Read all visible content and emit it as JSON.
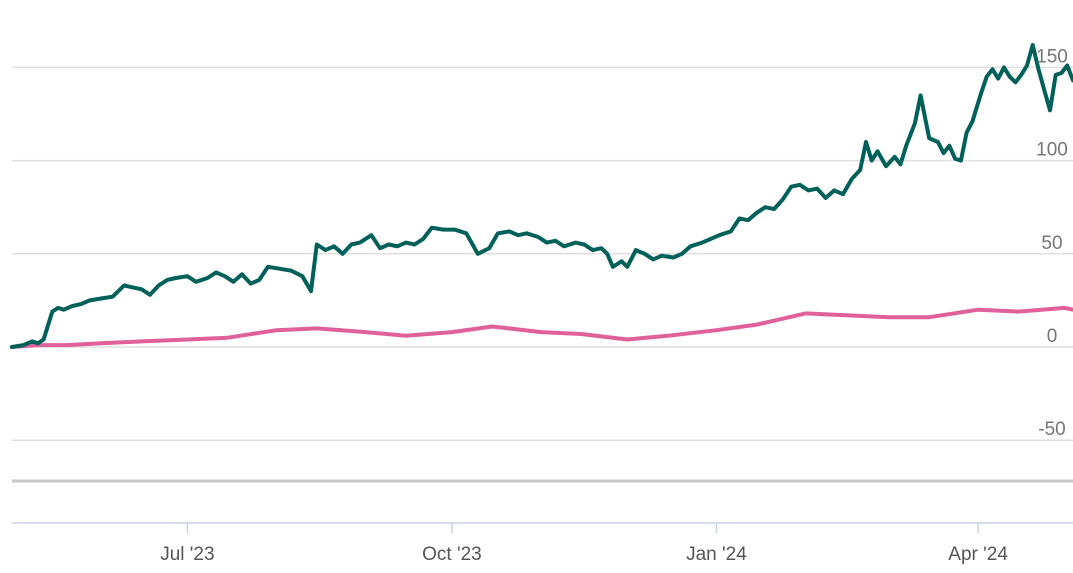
{
  "chart_data": {
    "type": "line",
    "title": "",
    "xlabel": "",
    "ylabel": "",
    "ylim": [
      -70,
      160
    ],
    "y_ticks": [
      150,
      100,
      50,
      0,
      -50
    ],
    "y_tick_labels": [
      "150",
      "100",
      "50",
      "0",
      "-50"
    ],
    "x_ticks": [
      {
        "label": "Jul '23",
        "date": "2023-07-01"
      },
      {
        "label": "Oct '23",
        "date": "2023-10-01"
      },
      {
        "label": "Jan '24",
        "date": "2024-01-01"
      },
      {
        "label": "Apr '24",
        "date": "2024-04-01"
      }
    ],
    "x_range": [
      "2023-05-01",
      "2024-05-04"
    ],
    "grid": true,
    "legend": "none",
    "colors": {
      "series_1": "#00605a",
      "series_2": "#e0609a",
      "grid": "#e0e0e0",
      "axis": "#c8d4e8",
      "floor": "#c8c8c8"
    },
    "series": [
      {
        "color": "#00605a",
        "points": [
          [
            "2023-05-01",
            0
          ],
          [
            "2023-05-05",
            1
          ],
          [
            "2023-05-08",
            3
          ],
          [
            "2023-05-10",
            2
          ],
          [
            "2023-05-12",
            4
          ],
          [
            "2023-05-15",
            19
          ],
          [
            "2023-05-17",
            21
          ],
          [
            "2023-05-19",
            20
          ],
          [
            "2023-05-22",
            22
          ],
          [
            "2023-05-25",
            23
          ],
          [
            "2023-05-28",
            25
          ],
          [
            "2023-06-01",
            26
          ],
          [
            "2023-06-05",
            27
          ],
          [
            "2023-06-09",
            33
          ],
          [
            "2023-06-12",
            32
          ],
          [
            "2023-06-15",
            31
          ],
          [
            "2023-06-18",
            28
          ],
          [
            "2023-06-21",
            33
          ],
          [
            "2023-06-24",
            36
          ],
          [
            "2023-06-27",
            37
          ],
          [
            "2023-07-01",
            38
          ],
          [
            "2023-07-04",
            35
          ],
          [
            "2023-07-08",
            37
          ],
          [
            "2023-07-11",
            40
          ],
          [
            "2023-07-14",
            38
          ],
          [
            "2023-07-17",
            35
          ],
          [
            "2023-07-20",
            39
          ],
          [
            "2023-07-23",
            34
          ],
          [
            "2023-07-26",
            36
          ],
          [
            "2023-07-29",
            43
          ],
          [
            "2023-08-02",
            42
          ],
          [
            "2023-08-06",
            41
          ],
          [
            "2023-08-10",
            38
          ],
          [
            "2023-08-13",
            30
          ],
          [
            "2023-08-15",
            55
          ],
          [
            "2023-08-18",
            52
          ],
          [
            "2023-08-21",
            54
          ],
          [
            "2023-08-24",
            50
          ],
          [
            "2023-08-27",
            55
          ],
          [
            "2023-08-30",
            56
          ],
          [
            "2023-09-03",
            60
          ],
          [
            "2023-09-06",
            53
          ],
          [
            "2023-09-09",
            55
          ],
          [
            "2023-09-12",
            54
          ],
          [
            "2023-09-15",
            56
          ],
          [
            "2023-09-18",
            55
          ],
          [
            "2023-09-21",
            58
          ],
          [
            "2023-09-24",
            64
          ],
          [
            "2023-09-28",
            63
          ],
          [
            "2023-10-02",
            63
          ],
          [
            "2023-10-06",
            61
          ],
          [
            "2023-10-10",
            50
          ],
          [
            "2023-10-14",
            53
          ],
          [
            "2023-10-17",
            61
          ],
          [
            "2023-10-21",
            62
          ],
          [
            "2023-10-24",
            60
          ],
          [
            "2023-10-27",
            61
          ],
          [
            "2023-10-31",
            59
          ],
          [
            "2023-11-03",
            56
          ],
          [
            "2023-11-06",
            57
          ],
          [
            "2023-11-09",
            54
          ],
          [
            "2023-11-13",
            56
          ],
          [
            "2023-11-16",
            55
          ],
          [
            "2023-11-19",
            52
          ],
          [
            "2023-11-22",
            53
          ],
          [
            "2023-11-24",
            50
          ],
          [
            "2023-11-26",
            43
          ],
          [
            "2023-11-29",
            46
          ],
          [
            "2023-12-01",
            43
          ],
          [
            "2023-12-04",
            52
          ],
          [
            "2023-12-07",
            50
          ],
          [
            "2023-12-10",
            47
          ],
          [
            "2023-12-13",
            49
          ],
          [
            "2023-12-17",
            48
          ],
          [
            "2023-12-20",
            50
          ],
          [
            "2023-12-23",
            54
          ],
          [
            "2023-12-27",
            56
          ],
          [
            "2023-12-30",
            58
          ],
          [
            "2024-01-02",
            60
          ],
          [
            "2024-01-06",
            62
          ],
          [
            "2024-01-09",
            69
          ],
          [
            "2024-01-12",
            68
          ],
          [
            "2024-01-15",
            72
          ],
          [
            "2024-01-18",
            75
          ],
          [
            "2024-01-21",
            74
          ],
          [
            "2024-01-24",
            79
          ],
          [
            "2024-01-27",
            86
          ],
          [
            "2024-01-30",
            87
          ],
          [
            "2024-02-02",
            84
          ],
          [
            "2024-02-05",
            85
          ],
          [
            "2024-02-08",
            80
          ],
          [
            "2024-02-11",
            84
          ],
          [
            "2024-02-14",
            82
          ],
          [
            "2024-02-17",
            90
          ],
          [
            "2024-02-20",
            95
          ],
          [
            "2024-02-22",
            110
          ],
          [
            "2024-02-24",
            100
          ],
          [
            "2024-02-26",
            105
          ],
          [
            "2024-02-29",
            97
          ],
          [
            "2024-03-03",
            102
          ],
          [
            "2024-03-05",
            98
          ],
          [
            "2024-03-07",
            108
          ],
          [
            "2024-03-10",
            120
          ],
          [
            "2024-03-12",
            135
          ],
          [
            "2024-03-15",
            112
          ],
          [
            "2024-03-18",
            110
          ],
          [
            "2024-03-20",
            104
          ],
          [
            "2024-03-22",
            108
          ],
          [
            "2024-03-24",
            101
          ],
          [
            "2024-03-26",
            100
          ],
          [
            "2024-03-28",
            115
          ],
          [
            "2024-03-30",
            121
          ],
          [
            "2024-04-02",
            136
          ],
          [
            "2024-04-04",
            145
          ],
          [
            "2024-04-06",
            149
          ],
          [
            "2024-04-08",
            144
          ],
          [
            "2024-04-10",
            150
          ],
          [
            "2024-04-12",
            145
          ],
          [
            "2024-04-14",
            142
          ],
          [
            "2024-04-16",
            146
          ],
          [
            "2024-04-18",
            151
          ],
          [
            "2024-04-20",
            162
          ],
          [
            "2024-04-22",
            149
          ],
          [
            "2024-04-24",
            138
          ],
          [
            "2024-04-26",
            127
          ],
          [
            "2024-04-28",
            146
          ],
          [
            "2024-04-30",
            147
          ],
          [
            "2024-05-02",
            151
          ],
          [
            "2024-05-04",
            143
          ]
        ]
      },
      {
        "color": "#e0609a",
        "points": [
          [
            "2023-05-01",
            0
          ],
          [
            "2023-05-10",
            1
          ],
          [
            "2023-05-20",
            1
          ],
          [
            "2023-06-01",
            2
          ],
          [
            "2023-06-15",
            3
          ],
          [
            "2023-07-01",
            4
          ],
          [
            "2023-07-15",
            5
          ],
          [
            "2023-08-01",
            9
          ],
          [
            "2023-08-15",
            10
          ],
          [
            "2023-09-01",
            8
          ],
          [
            "2023-09-15",
            6
          ],
          [
            "2023-10-01",
            8
          ],
          [
            "2023-10-15",
            11
          ],
          [
            "2023-11-01",
            8
          ],
          [
            "2023-11-15",
            7
          ],
          [
            "2023-12-01",
            4
          ],
          [
            "2023-12-15",
            6
          ],
          [
            "2024-01-01",
            9
          ],
          [
            "2024-01-15",
            12
          ],
          [
            "2024-02-01",
            18
          ],
          [
            "2024-02-15",
            17
          ],
          [
            "2024-03-01",
            16
          ],
          [
            "2024-03-15",
            16
          ],
          [
            "2024-04-01",
            20
          ],
          [
            "2024-04-15",
            19
          ],
          [
            "2024-05-01",
            21
          ],
          [
            "2024-05-04",
            20
          ]
        ]
      }
    ]
  }
}
